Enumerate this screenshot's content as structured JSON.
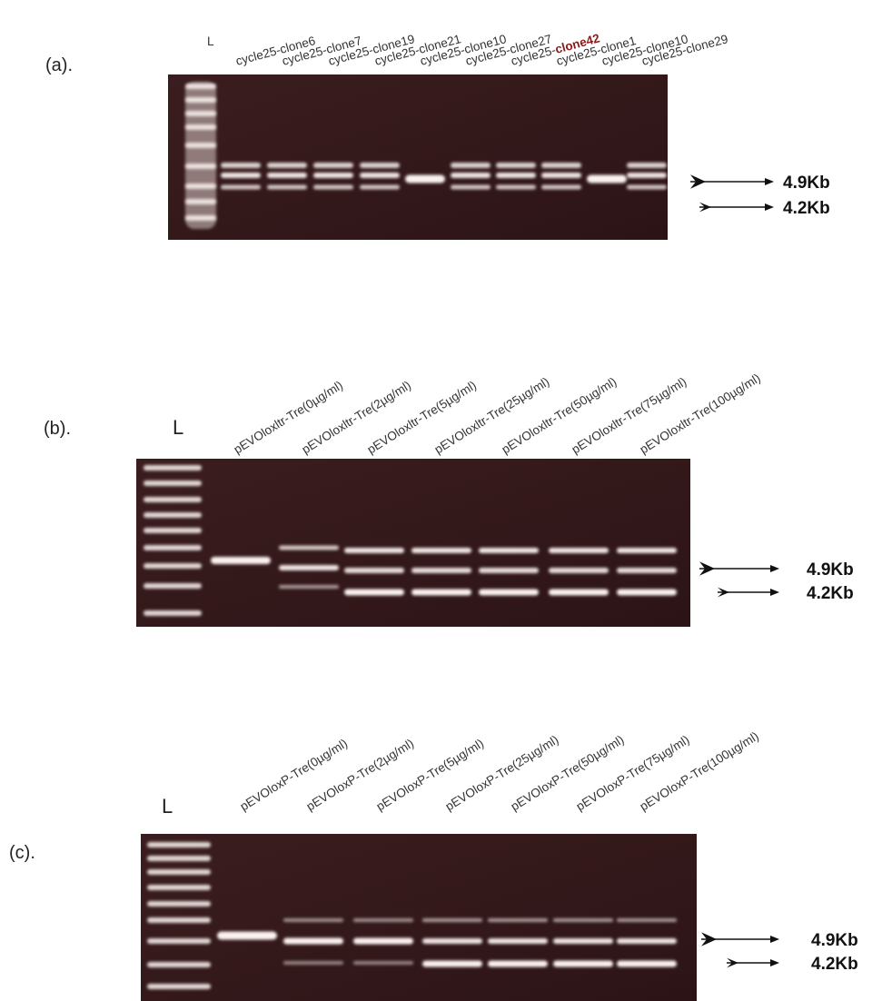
{
  "panels": [
    {
      "label": "(a).",
      "ladder": "L",
      "lanes": [
        "cycle25-clone6",
        "cycle25-clone7",
        "cycle25-clone19",
        "cycle25-clone21",
        "cycle25-clone10",
        "cycle25-clone27",
        {
          "text": "cycle25-",
          "highlight": "clone42"
        },
        "cycle25-clone1",
        "cycle25-clone10",
        "cycle25-clone29"
      ],
      "markers": [
        "4.9Kb",
        "4.2Kb"
      ]
    },
    {
      "label": "(b).",
      "ladder": "L",
      "lanes": [
        "pEVOloxltr-Tre(0µg/ml)",
        "pEVOloxltr-Tre(2µg/ml)",
        "pEVOloxltr-Tre(5µg/ml)",
        "pEVOloxltr-Tre(25µg/ml)",
        "pEVOloxltr-Tre(50µg/ml)",
        "pEVOloxltr-Tre(75µg/ml)",
        "pEVOloxltr-Tre(100µg/ml)"
      ],
      "markers": [
        "4.9Kb",
        "4.2Kb"
      ]
    },
    {
      "label": "(c).",
      "ladder": "L",
      "lanes": [
        "pEVOloxP-Tre(0µg/ml)",
        "pEVOloxP-Tre(2µg/ml)",
        "pEVOloxP-Tre(5µg/ml)",
        "pEVOloxP-Tre(25µg/ml)",
        "pEVOloxP-Tre(50µg/ml)",
        "pEVOloxP-Tre(75µg/ml)",
        "pEVOloxP-Tre(100µg/ml)"
      ],
      "markers": [
        "4.9Kb",
        "4.2Kb"
      ]
    }
  ]
}
